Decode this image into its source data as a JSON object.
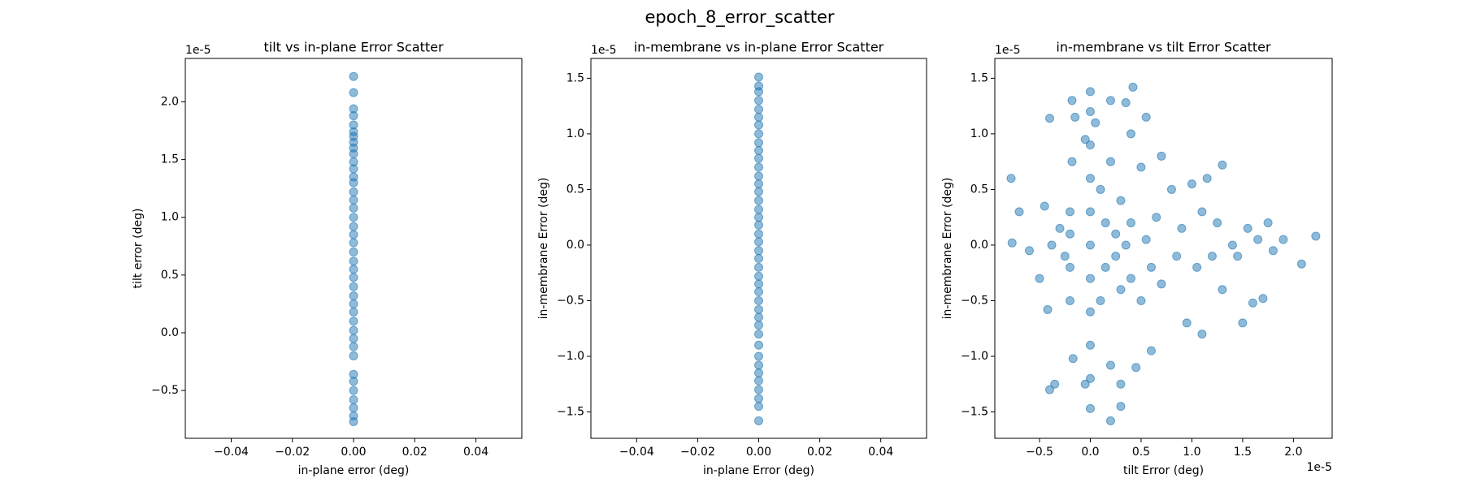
{
  "title": "epoch_8_error_scatter",
  "chart_data": [
    {
      "type": "scatter",
      "title": "tilt vs in-plane Error Scatter",
      "x_label": "in-plane error (deg)",
      "y_label": "tilt error (deg)",
      "y_offset_label": "1e-5",
      "color": "#1f77b4",
      "xlim": [
        -0.055,
        0.055
      ],
      "ylim": [
        -0.914,
        2.376
      ],
      "xticks": [
        {
          "value": -0.04,
          "label": "−0.04"
        },
        {
          "value": -0.02,
          "label": "−0.02"
        },
        {
          "value": 0,
          "label": "0.00"
        },
        {
          "value": 0.02,
          "label": "0.02"
        },
        {
          "value": 0.04,
          "label": "0.04"
        }
      ],
      "yticks": [
        {
          "value": -0.5,
          "label": "−0.5"
        },
        {
          "value": 0,
          "label": "0.0"
        },
        {
          "value": 0.5,
          "label": "0.5"
        },
        {
          "value": 1,
          "label": "1.0"
        },
        {
          "value": 1.5,
          "label": "1.5"
        },
        {
          "value": 2,
          "label": "2.0"
        }
      ],
      "x": [
        0,
        0,
        0,
        0,
        0,
        0,
        0,
        0,
        0,
        0,
        0,
        0,
        0,
        0,
        0,
        0,
        0,
        0,
        0,
        0,
        0,
        0,
        0,
        0,
        0,
        0,
        0,
        0,
        0,
        0,
        0,
        0,
        0,
        0,
        0,
        0,
        0,
        0,
        0,
        0,
        0
      ],
      "y": [
        2.22,
        2.08,
        1.94,
        1.88,
        1.8,
        1.74,
        1.7,
        1.65,
        1.6,
        1.55,
        1.48,
        1.42,
        1.35,
        1.3,
        1.22,
        1.15,
        1.08,
        1.0,
        0.92,
        0.85,
        0.78,
        0.7,
        0.62,
        0.55,
        0.48,
        0.4,
        0.32,
        0.25,
        0.18,
        0.1,
        0.02,
        -0.05,
        -0.12,
        -0.2,
        -0.36,
        -0.42,
        -0.5,
        -0.58,
        -0.65,
        -0.72,
        -0.77
      ]
    },
    {
      "type": "scatter",
      "title": "in-membrane vs in-plane Error Scatter",
      "x_label": "in-plane Error (deg)",
      "y_label": "in-membrane Error (deg)",
      "y_offset_label": "1e-5",
      "color": "#1f77b4",
      "xlim": [
        -0.055,
        0.055
      ],
      "ylim": [
        -1.737,
        1.678
      ],
      "xticks": [
        {
          "value": -0.04,
          "label": "−0.04"
        },
        {
          "value": -0.02,
          "label": "−0.02"
        },
        {
          "value": 0,
          "label": "0.00"
        },
        {
          "value": 0.02,
          "label": "0.02"
        },
        {
          "value": 0.04,
          "label": "0.04"
        }
      ],
      "yticks": [
        {
          "value": -1.5,
          "label": "−1.5"
        },
        {
          "value": -1,
          "label": "−1.0"
        },
        {
          "value": -0.5,
          "label": "−0.5"
        },
        {
          "value": 0,
          "label": "0.0"
        },
        {
          "value": 0.5,
          "label": "0.5"
        },
        {
          "value": 1,
          "label": "1.0"
        },
        {
          "value": 1.5,
          "label": "1.5"
        }
      ],
      "x": [
        0,
        0,
        0,
        0,
        0,
        0,
        0,
        0,
        0,
        0,
        0,
        0,
        0,
        0,
        0,
        0,
        0,
        0,
        0,
        0,
        0,
        0,
        0,
        0,
        0,
        0,
        0,
        0,
        0,
        0,
        0,
        0,
        0,
        0,
        0,
        0,
        0,
        0,
        0,
        0,
        0
      ],
      "y": [
        1.51,
        1.43,
        1.38,
        1.3,
        1.22,
        1.15,
        1.08,
        1.0,
        0.92,
        0.85,
        0.78,
        0.7,
        0.62,
        0.55,
        0.48,
        0.4,
        0.32,
        0.25,
        0.18,
        0.1,
        0.03,
        -0.05,
        -0.12,
        -0.2,
        -0.28,
        -0.35,
        -0.42,
        -0.5,
        -0.58,
        -0.65,
        -0.72,
        -0.8,
        -0.9,
        -1.0,
        -1.08,
        -1.15,
        -1.22,
        -1.3,
        -1.38,
        -1.45,
        -1.58
      ]
    },
    {
      "type": "scatter",
      "title": "in-membrane vs tilt Error Scatter",
      "x_label": "tilt Error (deg)",
      "y_label": "in-membrane Error (deg)",
      "x_offset_label": "1e-5",
      "y_offset_label": "1e-5",
      "color": "#1f77b4",
      "xlim": [
        -0.94,
        2.381
      ],
      "ylim": [
        -1.737,
        1.678
      ],
      "xticks": [
        {
          "value": -0.5,
          "label": "−0.5"
        },
        {
          "value": 0,
          "label": "0.0"
        },
        {
          "value": 0.5,
          "label": "0.5"
        },
        {
          "value": 1,
          "label": "1.0"
        },
        {
          "value": 1.5,
          "label": "1.5"
        },
        {
          "value": 2,
          "label": "2.0"
        }
      ],
      "yticks": [
        {
          "value": -1.5,
          "label": "−1.5"
        },
        {
          "value": -1,
          "label": "−1.0"
        },
        {
          "value": -0.5,
          "label": "−0.5"
        },
        {
          "value": 0,
          "label": "0.0"
        },
        {
          "value": 0.5,
          "label": "0.5"
        },
        {
          "value": 1,
          "label": "1.0"
        },
        {
          "value": 1.5,
          "label": "1.5"
        }
      ],
      "x": [
        -0.78,
        -0.77,
        -0.7,
        -0.6,
        -0.5,
        -0.45,
        -0.42,
        -0.4,
        -0.38,
        -0.35,
        -0.4,
        -0.3,
        -0.25,
        -0.2,
        -0.2,
        -0.2,
        -0.2,
        -0.18,
        -0.18,
        -0.17,
        -0.15,
        -0.05,
        -0.05,
        0,
        0,
        0,
        0,
        0,
        0,
        0,
        0,
        0,
        0,
        0,
        0.05,
        0.1,
        0.1,
        0.15,
        0.15,
        0.2,
        0.2,
        0.2,
        0.2,
        0.25,
        0.25,
        0.3,
        0.3,
        0.3,
        0.3,
        0.35,
        0.35,
        0.4,
        0.4,
        0.4,
        0.42,
        0.45,
        0.5,
        0.5,
        0.55,
        0.55,
        0.6,
        0.6,
        0.65,
        0.7,
        0.7,
        0.8,
        0.85,
        0.9,
        0.95,
        1.0,
        1.05,
        1.1,
        1.1,
        1.15,
        1.2,
        1.25,
        1.3,
        1.3,
        1.4,
        1.45,
        1.5,
        1.55,
        1.6,
        1.65,
        1.7,
        1.75,
        1.8,
        1.9,
        2.08,
        2.22
      ],
      "y": [
        0.6,
        0.02,
        0.3,
        -0.05,
        -0.3,
        0.35,
        -0.58,
        -1.3,
        0.0,
        -1.25,
        1.14,
        0.15,
        -0.1,
        0.3,
        0.1,
        -0.2,
        -0.5,
        0.75,
        1.3,
        -1.02,
        1.15,
        -1.25,
        0.95,
        1.38,
        1.2,
        0.9,
        0.6,
        0.3,
        0.0,
        -0.3,
        -0.6,
        -0.9,
        -1.2,
        -1.47,
        1.1,
        0.5,
        -0.5,
        0.2,
        -0.2,
        1.3,
        0.75,
        -1.08,
        -1.58,
        0.1,
        -0.1,
        0.4,
        -0.4,
        -1.25,
        -1.45,
        1.28,
        0.0,
        1.0,
        0.2,
        -0.3,
        1.42,
        -1.1,
        0.7,
        -0.5,
        1.15,
        0.05,
        -0.2,
        -0.95,
        0.25,
        0.8,
        -0.35,
        0.5,
        -0.1,
        0.15,
        -0.7,
        0.55,
        -0.2,
        0.3,
        -0.8,
        0.6,
        -0.1,
        0.2,
        0.72,
        -0.4,
        0.0,
        -0.1,
        -0.7,
        0.15,
        -0.52,
        0.05,
        -0.48,
        0.2,
        -0.05,
        0.05,
        -0.17,
        0.08
      ]
    }
  ]
}
